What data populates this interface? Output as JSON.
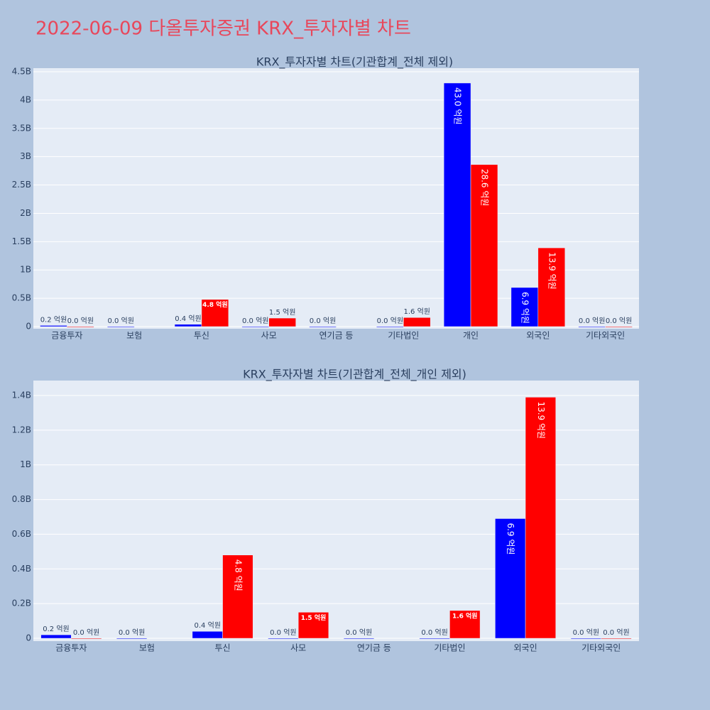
{
  "title": "2022-06-09 다올투자증권 KRX_투자자별 차트",
  "chart_data": [
    {
      "type": "bar",
      "title": "KRX_투자자별 차트(기관합계_전체 제외)",
      "categories": [
        "금융투자",
        "보험",
        "투신",
        "사모",
        "연기금 등",
        "기타법인",
        "개인",
        "외국인",
        "기타외국인"
      ],
      "series": [
        {
          "color": "#0000ff",
          "values": [
            20000000,
            0,
            40000000,
            0,
            0,
            0,
            4300000000,
            690000000,
            0
          ],
          "value_labels": [
            "0.2 억원",
            "0.0 억원",
            "0.4 억원",
            "0.0 억원",
            "0.0 억원",
            "0.0 억원",
            "43.0 억원",
            "6.9 억원",
            "0.0 억원"
          ]
        },
        {
          "color": "#ff0000",
          "values": [
            0,
            null,
            480000000,
            150000000,
            null,
            160000000,
            2860000000,
            1390000000,
            0
          ],
          "value_labels": [
            "0.0 억원",
            null,
            "4.8 억원",
            "1.5 억원",
            null,
            "1.6 억원",
            "28.6 억원",
            "13.9 억원",
            "0.0 억원"
          ]
        }
      ],
      "ylim": [
        -37600000,
        4562700000
      ],
      "yticks": [
        0,
        {
          "value": 500000000,
          "label": "0.5B"
        },
        {
          "value": 1000000000,
          "label": "1B"
        },
        {
          "value": 1500000000,
          "label": "1.5B"
        },
        {
          "value": 2000000000,
          "label": "2B"
        },
        {
          "value": 2500000000,
          "label": "2.5B"
        },
        {
          "value": 3000000000,
          "label": "3B"
        },
        {
          "value": 3500000000,
          "label": "3.5B"
        },
        {
          "value": 4000000000,
          "label": "4B"
        },
        {
          "value": 4500000000,
          "label": "4.5B"
        }
      ],
      "grid": true
    },
    {
      "type": "bar",
      "title": "KRX_투자자별 차트(기관합계_전체_개인 제외)",
      "categories": [
        "금융투자",
        "보험",
        "투신",
        "사모",
        "연기금 등",
        "기타법인",
        "외국인",
        "기타외국인"
      ],
      "series": [
        {
          "color": "#0000ff",
          "values": [
            20000000,
            0,
            40000000,
            0,
            0,
            0,
            690000000,
            0
          ],
          "value_labels": [
            "0.2 억원",
            "0.0 억원",
            "0.4 억원",
            "0.0 억원",
            "0.0 억원",
            "0.0 억원",
            "6.9 억원",
            "0.0 억원"
          ]
        },
        {
          "color": "#ff0000",
          "values": [
            0,
            null,
            480000000,
            150000000,
            null,
            160000000,
            1390000000,
            0
          ],
          "value_labels": [
            "0.0 억원",
            null,
            "4.8 억원",
            "1.5 억원",
            null,
            "1.6 억원",
            "13.9 억원",
            "0.0 억원"
          ]
        }
      ],
      "ylim": [
        -16400000,
        1486000000
      ],
      "yticks": [
        0,
        {
          "value": 200000000,
          "label": "0.2B"
        },
        {
          "value": 400000000,
          "label": "0.4B"
        },
        {
          "value": 600000000,
          "label": "0.6B"
        },
        {
          "value": 800000000,
          "label": "0.8B"
        },
        {
          "value": 1000000000,
          "label": "1B"
        },
        {
          "value": 1200000000,
          "label": "1.2B"
        },
        {
          "value": 1400000000,
          "label": "1.4B"
        }
      ],
      "grid": true
    }
  ]
}
